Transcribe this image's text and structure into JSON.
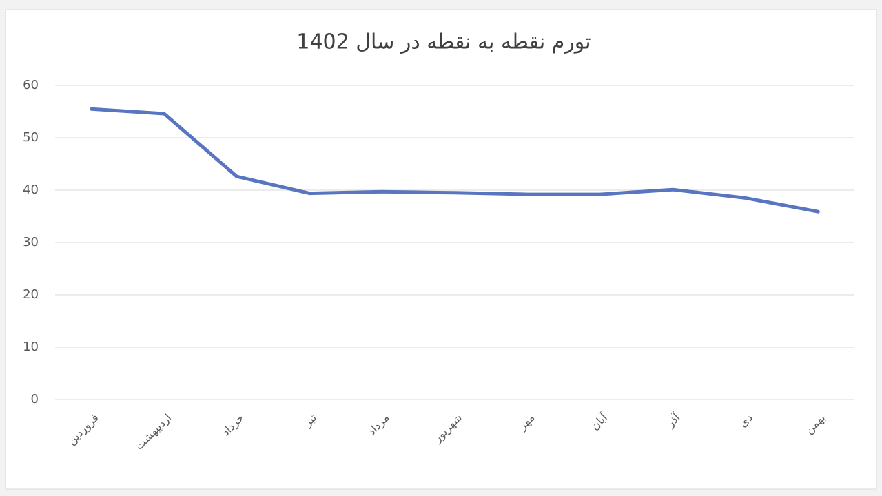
{
  "chart_data": {
    "type": "line",
    "title": "تورم نقطه به نقطه در سال 1402",
    "categories": [
      "فروردین",
      "اردیبهشت",
      "خرداد",
      "تیر",
      "مرداد",
      "شهریور",
      "مهر",
      "آبان",
      "آذر",
      "دی",
      "بهمن"
    ],
    "values": [
      55.5,
      54.6,
      42.6,
      39.4,
      39.7,
      39.5,
      39.2,
      39.2,
      40.1,
      38.5,
      35.9
    ],
    "color": "#5875bf",
    "ylim": [
      0,
      60
    ],
    "yticks": [
      0,
      10,
      20,
      30,
      40,
      50,
      60
    ],
    "grid": true
  }
}
